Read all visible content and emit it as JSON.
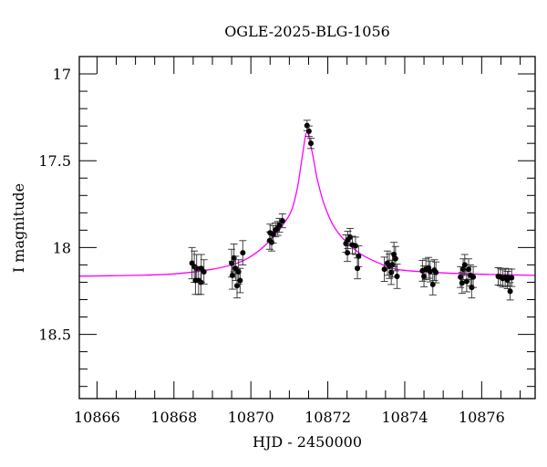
{
  "chart_data": {
    "type": "scatter",
    "title": "OGLE-2025-BLG-1056",
    "xlabel": "HJD - 2450000",
    "ylabel": "I magnitude",
    "xlim": [
      10865.54,
      10877.39
    ],
    "ylim": [
      18.87,
      16.9
    ],
    "y_inverted": true,
    "grid": false,
    "x_ticks": [
      "10866",
      "10868",
      "10870",
      "10872",
      "10874",
      "10876"
    ],
    "y_ticks": [
      "17",
      "17.5",
      "18",
      "18.5"
    ],
    "colors": {
      "data": "#000000",
      "model": "#ff00ff"
    },
    "series": [
      {
        "kind": "points_with_errorbars",
        "points": [
          [
            10868.47,
            18.09,
            0.09
          ],
          [
            10868.53,
            18.11,
            0.09
          ],
          [
            10868.59,
            18.12,
            0.08
          ],
          [
            10868.56,
            18.19,
            0.08
          ],
          [
            10868.64,
            18.19,
            0.08
          ],
          [
            10868.7,
            18.2,
            0.07
          ],
          [
            10868.71,
            18.12,
            0.08
          ],
          [
            10868.78,
            18.14,
            0.07
          ],
          [
            10869.5,
            18.09,
            0.08
          ],
          [
            10869.56,
            18.06,
            0.08
          ],
          [
            10869.52,
            18.16,
            0.08
          ],
          [
            10869.6,
            18.12,
            0.07
          ],
          [
            10869.64,
            18.22,
            0.07
          ],
          [
            10869.68,
            18.14,
            0.07
          ],
          [
            10869.72,
            18.19,
            0.07
          ],
          [
            10869.79,
            18.03,
            0.07
          ],
          [
            10870.49,
            17.96,
            0.05
          ],
          [
            10870.5,
            17.915,
            0.05
          ],
          [
            10870.54,
            17.97,
            0.05
          ],
          [
            10870.58,
            17.924,
            0.05
          ],
          [
            10870.64,
            17.898,
            0.04
          ],
          [
            10870.7,
            17.89,
            0.04
          ],
          [
            10870.74,
            17.872,
            0.04
          ],
          [
            10870.82,
            17.846,
            0.04
          ],
          [
            10871.46,
            17.297,
            0.03
          ],
          [
            10871.51,
            17.33,
            0.03
          ],
          [
            10871.56,
            17.4,
            0.03
          ],
          [
            10872.47,
            17.977,
            0.05
          ],
          [
            10872.52,
            17.956,
            0.05
          ],
          [
            10872.58,
            17.94,
            0.05
          ],
          [
            10872.51,
            18.03,
            0.05
          ],
          [
            10872.64,
            17.985,
            0.05
          ],
          [
            10872.72,
            17.99,
            0.05
          ],
          [
            10872.8,
            18.05,
            0.06
          ],
          [
            10872.77,
            18.12,
            0.06
          ],
          [
            10873.47,
            18.125,
            0.07
          ],
          [
            10873.55,
            18.09,
            0.07
          ],
          [
            10873.6,
            18.108,
            0.07
          ],
          [
            10873.65,
            18.143,
            0.07
          ],
          [
            10873.68,
            18.1,
            0.07
          ],
          [
            10873.72,
            18.04,
            0.07
          ],
          [
            10873.76,
            18.064,
            0.07
          ],
          [
            10873.8,
            18.166,
            0.07
          ],
          [
            10874.46,
            18.134,
            0.06
          ],
          [
            10874.5,
            18.166,
            0.06
          ],
          [
            10874.55,
            18.125,
            0.06
          ],
          [
            10874.62,
            18.117,
            0.06
          ],
          [
            10874.66,
            18.138,
            0.06
          ],
          [
            10874.73,
            18.213,
            0.06
          ],
          [
            10874.77,
            18.13,
            0.06
          ],
          [
            10874.81,
            18.143,
            0.06
          ],
          [
            10875.45,
            18.17,
            0.06
          ],
          [
            10875.49,
            18.204,
            0.06
          ],
          [
            10875.52,
            18.125,
            0.06
          ],
          [
            10875.56,
            18.1,
            0.06
          ],
          [
            10875.61,
            18.195,
            0.06
          ],
          [
            10875.66,
            18.125,
            0.06
          ],
          [
            10875.71,
            18.16,
            0.06
          ],
          [
            10875.74,
            18.23,
            0.06
          ],
          [
            10875.78,
            18.17,
            0.06
          ],
          [
            10876.43,
            18.166,
            0.05
          ],
          [
            10876.49,
            18.17,
            0.05
          ],
          [
            10876.55,
            18.178,
            0.05
          ],
          [
            10876.61,
            18.17,
            0.05
          ],
          [
            10876.67,
            18.187,
            0.05
          ],
          [
            10876.7,
            18.173,
            0.05
          ],
          [
            10876.74,
            18.252,
            0.05
          ],
          [
            10876.78,
            18.174,
            0.05
          ]
        ]
      },
      {
        "kind": "model_curve",
        "points": [
          [
            10865.54,
            18.165
          ],
          [
            10867.0,
            18.16
          ],
          [
            10868.0,
            18.152
          ],
          [
            10869.0,
            18.125
          ],
          [
            10869.64,
            18.09
          ],
          [
            10870.03,
            18.047
          ],
          [
            10870.42,
            17.977
          ],
          [
            10870.82,
            17.872
          ],
          [
            10871.06,
            17.784
          ],
          [
            10871.22,
            17.644
          ],
          [
            10871.34,
            17.47
          ],
          [
            10871.46,
            17.335
          ],
          [
            10871.61,
            17.47
          ],
          [
            10871.73,
            17.61
          ],
          [
            10871.93,
            17.767
          ],
          [
            10872.24,
            17.906
          ],
          [
            10872.8,
            18.029
          ],
          [
            10873.43,
            18.099
          ],
          [
            10873.9,
            18.129
          ],
          [
            10875.0,
            18.146
          ],
          [
            10876.2,
            18.155
          ],
          [
            10877.39,
            18.16
          ]
        ]
      }
    ]
  }
}
